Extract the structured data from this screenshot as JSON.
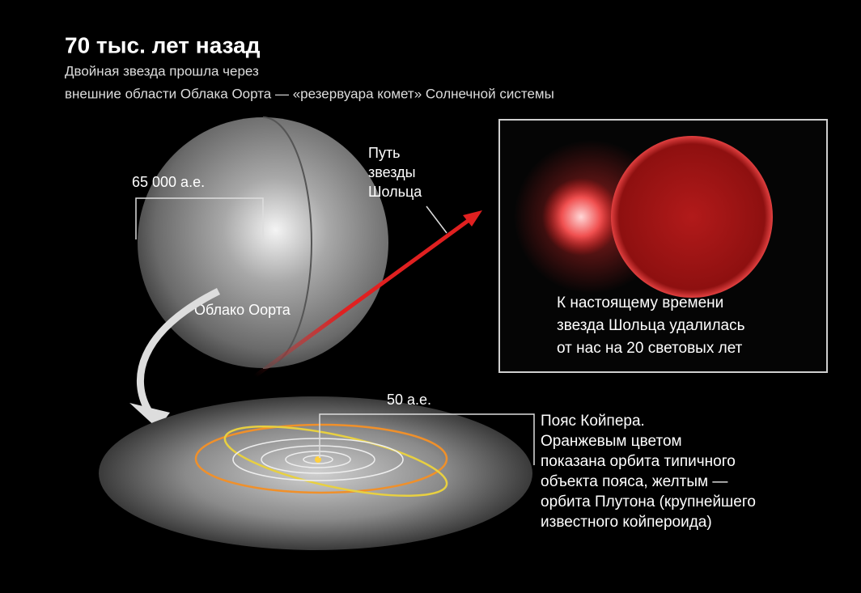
{
  "header": {
    "title": "70 тыс. лет назад",
    "subtitle": [
      "Двойная звезда прошла через",
      "внешние области Облака Оорта — «резервуара комет» Солнечной системы"
    ]
  },
  "oort_cloud": {
    "radius_label": "65 000 а.е.",
    "name": "Облако Оорта"
  },
  "star_path": {
    "label": [
      "Путь",
      "звезды",
      "Шольца"
    ]
  },
  "inset": {
    "caption": [
      "К настоящему времени",
      "звезда Шольца удалилась",
      "от нас на 20 световых лет"
    ]
  },
  "kuiper_belt": {
    "radius_label": "50 а.е.",
    "caption": [
      "Пояс Койпера.",
      "Оранжевым цветом",
      "показана орбита типичного",
      "объекта пояса, желтым —",
      "орбита Плутона (крупнейшего",
      "известного койпероида)"
    ]
  }
}
